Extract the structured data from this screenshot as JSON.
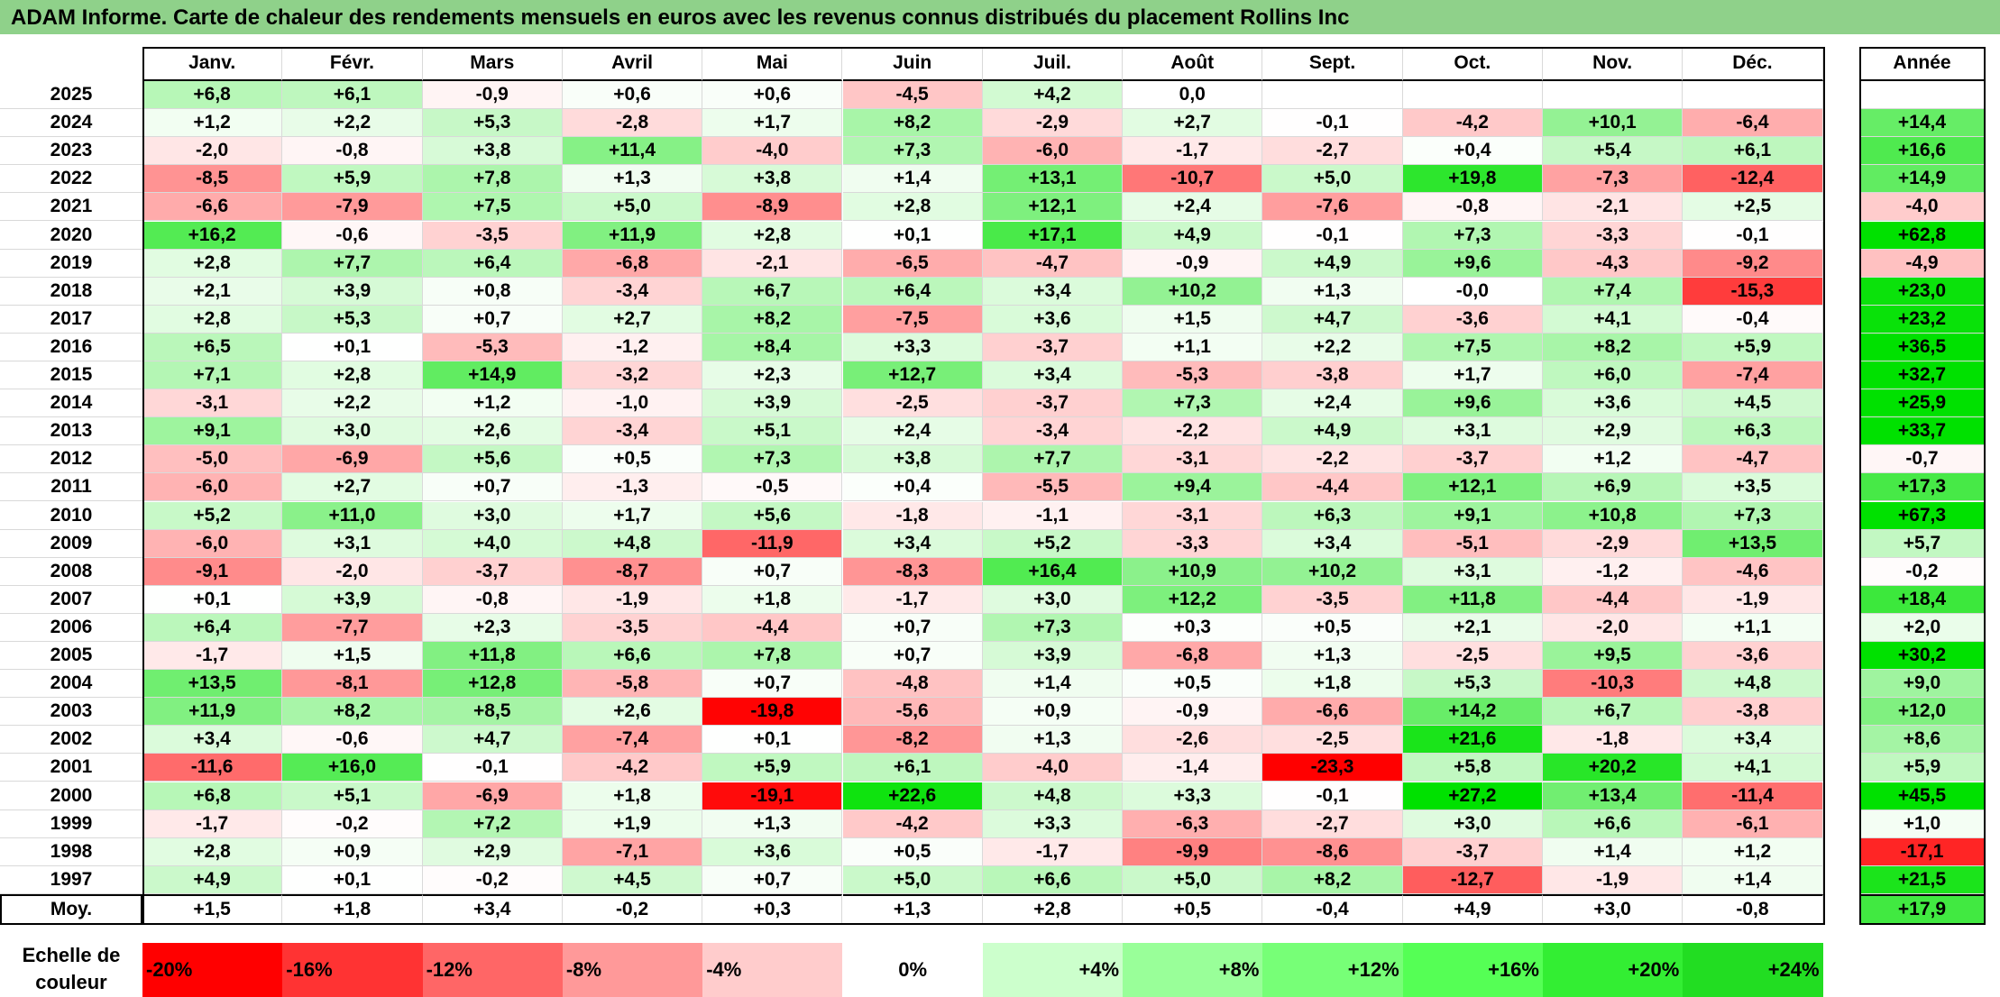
{
  "title": "ADAM Informe. Carte de chaleur des rendements mensuels en euros avec les revenus connus distribués du placement Rollins Inc",
  "chart_data": {
    "type": "heatmap",
    "title": "ADAM Informe. Carte de chaleur des rendements mensuels en euros avec les revenus connus distribués du placement Rollins Inc",
    "columns": [
      "Janv.",
      "Févr.",
      "Mars",
      "Avril",
      "Mai",
      "Juin",
      "Juil.",
      "Août",
      "Sept.",
      "Oct.",
      "Nov.",
      "Déc."
    ],
    "annual_header": "Année",
    "rows": [
      {
        "year": "2025",
        "values": [
          "+6,8",
          "+6,1",
          "-0,9",
          "+0,6",
          "+0,6",
          "-4,5",
          "+4,2",
          "0,0",
          "",
          "",
          "",
          ""
        ],
        "annual": ""
      },
      {
        "year": "2024",
        "values": [
          "+1,2",
          "+2,2",
          "+5,3",
          "-2,8",
          "+1,7",
          "+8,2",
          "-2,9",
          "+2,7",
          "-0,1",
          "-4,2",
          "+10,1",
          "-6,4"
        ],
        "annual": "+14,4"
      },
      {
        "year": "2023",
        "values": [
          "-2,0",
          "-0,8",
          "+3,8",
          "+11,4",
          "-4,0",
          "+7,3",
          "-6,0",
          "-1,7",
          "-2,7",
          "+0,4",
          "+5,4",
          "+6,1"
        ],
        "annual": "+16,6"
      },
      {
        "year": "2022",
        "values": [
          "-8,5",
          "+5,9",
          "+7,8",
          "+1,3",
          "+3,8",
          "+1,4",
          "+13,1",
          "-10,7",
          "+5,0",
          "+19,8",
          "-7,3",
          "-12,4"
        ],
        "annual": "+14,9"
      },
      {
        "year": "2021",
        "values": [
          "-6,6",
          "-7,9",
          "+7,5",
          "+5,0",
          "-8,9",
          "+2,8",
          "+12,1",
          "+2,4",
          "-7,6",
          "-0,8",
          "-2,1",
          "+2,5"
        ],
        "annual": "-4,0"
      },
      {
        "year": "2020",
        "values": [
          "+16,2",
          "-0,6",
          "-3,5",
          "+11,9",
          "+2,8",
          "+0,1",
          "+17,1",
          "+4,9",
          "-0,1",
          "+7,3",
          "-3,3",
          "-0,1"
        ],
        "annual": "+62,8"
      },
      {
        "year": "2019",
        "values": [
          "+2,8",
          "+7,7",
          "+6,4",
          "-6,8",
          "-2,1",
          "-6,5",
          "-4,7",
          "-0,9",
          "+4,9",
          "+9,6",
          "-4,3",
          "-9,2"
        ],
        "annual": "-4,9"
      },
      {
        "year": "2018",
        "values": [
          "+2,1",
          "+3,9",
          "+0,8",
          "-3,4",
          "+6,7",
          "+6,4",
          "+3,4",
          "+10,2",
          "+1,3",
          "-0,0",
          "+7,4",
          "-15,3"
        ],
        "annual": "+23,0"
      },
      {
        "year": "2017",
        "values": [
          "+2,8",
          "+5,3",
          "+0,7",
          "+2,7",
          "+8,2",
          "-7,5",
          "+3,6",
          "+1,5",
          "+4,7",
          "-3,6",
          "+4,1",
          "-0,4"
        ],
        "annual": "+23,2"
      },
      {
        "year": "2016",
        "values": [
          "+6,5",
          "+0,1",
          "-5,3",
          "-1,2",
          "+8,4",
          "+3,3",
          "-3,7",
          "+1,1",
          "+2,2",
          "+7,5",
          "+8,2",
          "+5,9"
        ],
        "annual": "+36,5"
      },
      {
        "year": "2015",
        "values": [
          "+7,1",
          "+2,8",
          "+14,9",
          "-3,2",
          "+2,3",
          "+12,7",
          "+3,4",
          "-5,3",
          "-3,8",
          "+1,7",
          "+6,0",
          "-7,4"
        ],
        "annual": "+32,7"
      },
      {
        "year": "2014",
        "values": [
          "-3,1",
          "+2,2",
          "+1,2",
          "-1,0",
          "+3,9",
          "-2,5",
          "-3,7",
          "+7,3",
          "+2,4",
          "+9,6",
          "+3,6",
          "+4,5"
        ],
        "annual": "+25,9"
      },
      {
        "year": "2013",
        "values": [
          "+9,1",
          "+3,0",
          "+2,6",
          "-3,4",
          "+5,1",
          "+2,4",
          "-3,4",
          "-2,2",
          "+4,9",
          "+3,1",
          "+2,9",
          "+6,3"
        ],
        "annual": "+33,7"
      },
      {
        "year": "2012",
        "values": [
          "-5,0",
          "-6,9",
          "+5,6",
          "+0,5",
          "+7,3",
          "+3,8",
          "+7,7",
          "-3,1",
          "-2,2",
          "-3,7",
          "+1,2",
          "-4,7"
        ],
        "annual": "-0,7"
      },
      {
        "year": "2011",
        "values": [
          "-6,0",
          "+2,7",
          "+0,7",
          "-1,3",
          "-0,5",
          "+0,4",
          "-5,5",
          "+9,4",
          "-4,4",
          "+12,1",
          "+6,9",
          "+3,5"
        ],
        "annual": "+17,3"
      },
      {
        "year": "2010",
        "values": [
          "+5,2",
          "+11,0",
          "+3,0",
          "+1,7",
          "+5,6",
          "-1,8",
          "-1,1",
          "-3,1",
          "+6,3",
          "+9,1",
          "+10,8",
          "+7,3"
        ],
        "annual": "+67,3"
      },
      {
        "year": "2009",
        "values": [
          "-6,0",
          "+3,1",
          "+4,0",
          "+4,8",
          "-11,9",
          "+3,4",
          "+5,2",
          "-3,3",
          "+3,4",
          "-5,1",
          "-2,9",
          "+13,5"
        ],
        "annual": "+5,7"
      },
      {
        "year": "2008",
        "values": [
          "-9,1",
          "-2,0",
          "-3,7",
          "-8,7",
          "+0,7",
          "-8,3",
          "+16,4",
          "+10,9",
          "+10,2",
          "+3,1",
          "-1,2",
          "-4,6"
        ],
        "annual": "-0,2"
      },
      {
        "year": "2007",
        "values": [
          "+0,1",
          "+3,9",
          "-0,8",
          "-1,9",
          "+1,8",
          "-1,7",
          "+3,0",
          "+12,2",
          "-3,5",
          "+11,8",
          "-4,4",
          "-1,9"
        ],
        "annual": "+18,4"
      },
      {
        "year": "2006",
        "values": [
          "+6,4",
          "-7,7",
          "+2,3",
          "-3,5",
          "-4,4",
          "+0,7",
          "+7,3",
          "+0,3",
          "+0,5",
          "+2,1",
          "-2,0",
          "+1,1"
        ],
        "annual": "+2,0"
      },
      {
        "year": "2005",
        "values": [
          "-1,7",
          "+1,5",
          "+11,8",
          "+6,6",
          "+7,8",
          "+0,7",
          "+3,9",
          "-6,8",
          "+1,3",
          "-2,5",
          "+9,5",
          "-3,6"
        ],
        "annual": "+30,2"
      },
      {
        "year": "2004",
        "values": [
          "+13,5",
          "-8,1",
          "+12,8",
          "-5,8",
          "+0,7",
          "-4,8",
          "+1,4",
          "+0,5",
          "+1,8",
          "+5,3",
          "-10,3",
          "+4,8"
        ],
        "annual": "+9,0"
      },
      {
        "year": "2003",
        "values": [
          "+11,9",
          "+8,2",
          "+8,5",
          "+2,6",
          "-19,8",
          "-5,6",
          "+0,9",
          "-0,9",
          "-6,6",
          "+14,2",
          "+6,7",
          "-3,8"
        ],
        "annual": "+12,0"
      },
      {
        "year": "2002",
        "values": [
          "+3,4",
          "-0,6",
          "+4,7",
          "-7,4",
          "+0,1",
          "-8,2",
          "+1,3",
          "-2,6",
          "-2,5",
          "+21,6",
          "-1,8",
          "+3,4"
        ],
        "annual": "+8,6"
      },
      {
        "year": "2001",
        "values": [
          "-11,6",
          "+16,0",
          "-0,1",
          "-4,2",
          "+5,9",
          "+6,1",
          "-4,0",
          "-1,4",
          "-23,3",
          "+5,8",
          "+20,2",
          "+4,1"
        ],
        "annual": "+5,9"
      },
      {
        "year": "2000",
        "values": [
          "+6,8",
          "+5,1",
          "-6,9",
          "+1,8",
          "-19,1",
          "+22,6",
          "+4,8",
          "+3,3",
          "-0,1",
          "+27,2",
          "+13,4",
          "-11,4"
        ],
        "annual": "+45,5"
      },
      {
        "year": "1999",
        "values": [
          "-1,7",
          "-0,2",
          "+7,2",
          "+1,9",
          "+1,3",
          "-4,2",
          "+3,3",
          "-6,3",
          "-2,7",
          "+3,0",
          "+6,6",
          "-6,1"
        ],
        "annual": "+1,0"
      },
      {
        "year": "1998",
        "values": [
          "+2,8",
          "+0,9",
          "+2,9",
          "-7,1",
          "+3,6",
          "+0,5",
          "-1,7",
          "-9,9",
          "-8,6",
          "-3,7",
          "+1,4",
          "+1,2"
        ],
        "annual": "-17,1"
      },
      {
        "year": "1997",
        "values": [
          "+4,9",
          "+0,1",
          "-0,2",
          "+4,5",
          "+0,7",
          "+5,0",
          "+6,6",
          "+5,0",
          "+8,2",
          "-12,7",
          "-1,9",
          "+1,4"
        ],
        "annual": "+21,5"
      }
    ],
    "average": {
      "label": "Moy.",
      "values": [
        "+1,5",
        "+1,8",
        "+3,4",
        "-0,2",
        "+0,3",
        "+1,3",
        "+2,8",
        "+0,5",
        "-0,4",
        "+4,9",
        "+3,0",
        "-0,8"
      ],
      "annual": "+17,9"
    },
    "color_scale": {
      "label": "Echelle de couleur",
      "stops": [
        "-20%",
        "-16%",
        "-12%",
        "-8%",
        "-4%",
        "0%",
        "+4%",
        "+8%",
        "+12%",
        "+16%",
        "+20%",
        "+24%"
      ],
      "colors": [
        "#ff0000",
        "#ff3333",
        "#ff6666",
        "#ff9999",
        "#ffcccc",
        "#ffffff",
        "#ccffcc",
        "#99ff99",
        "#77ff77",
        "#55ff55",
        "#33ee33",
        "#22dd22"
      ],
      "negative_color": "#ff0000",
      "positive_color": "#00dd00"
    }
  }
}
